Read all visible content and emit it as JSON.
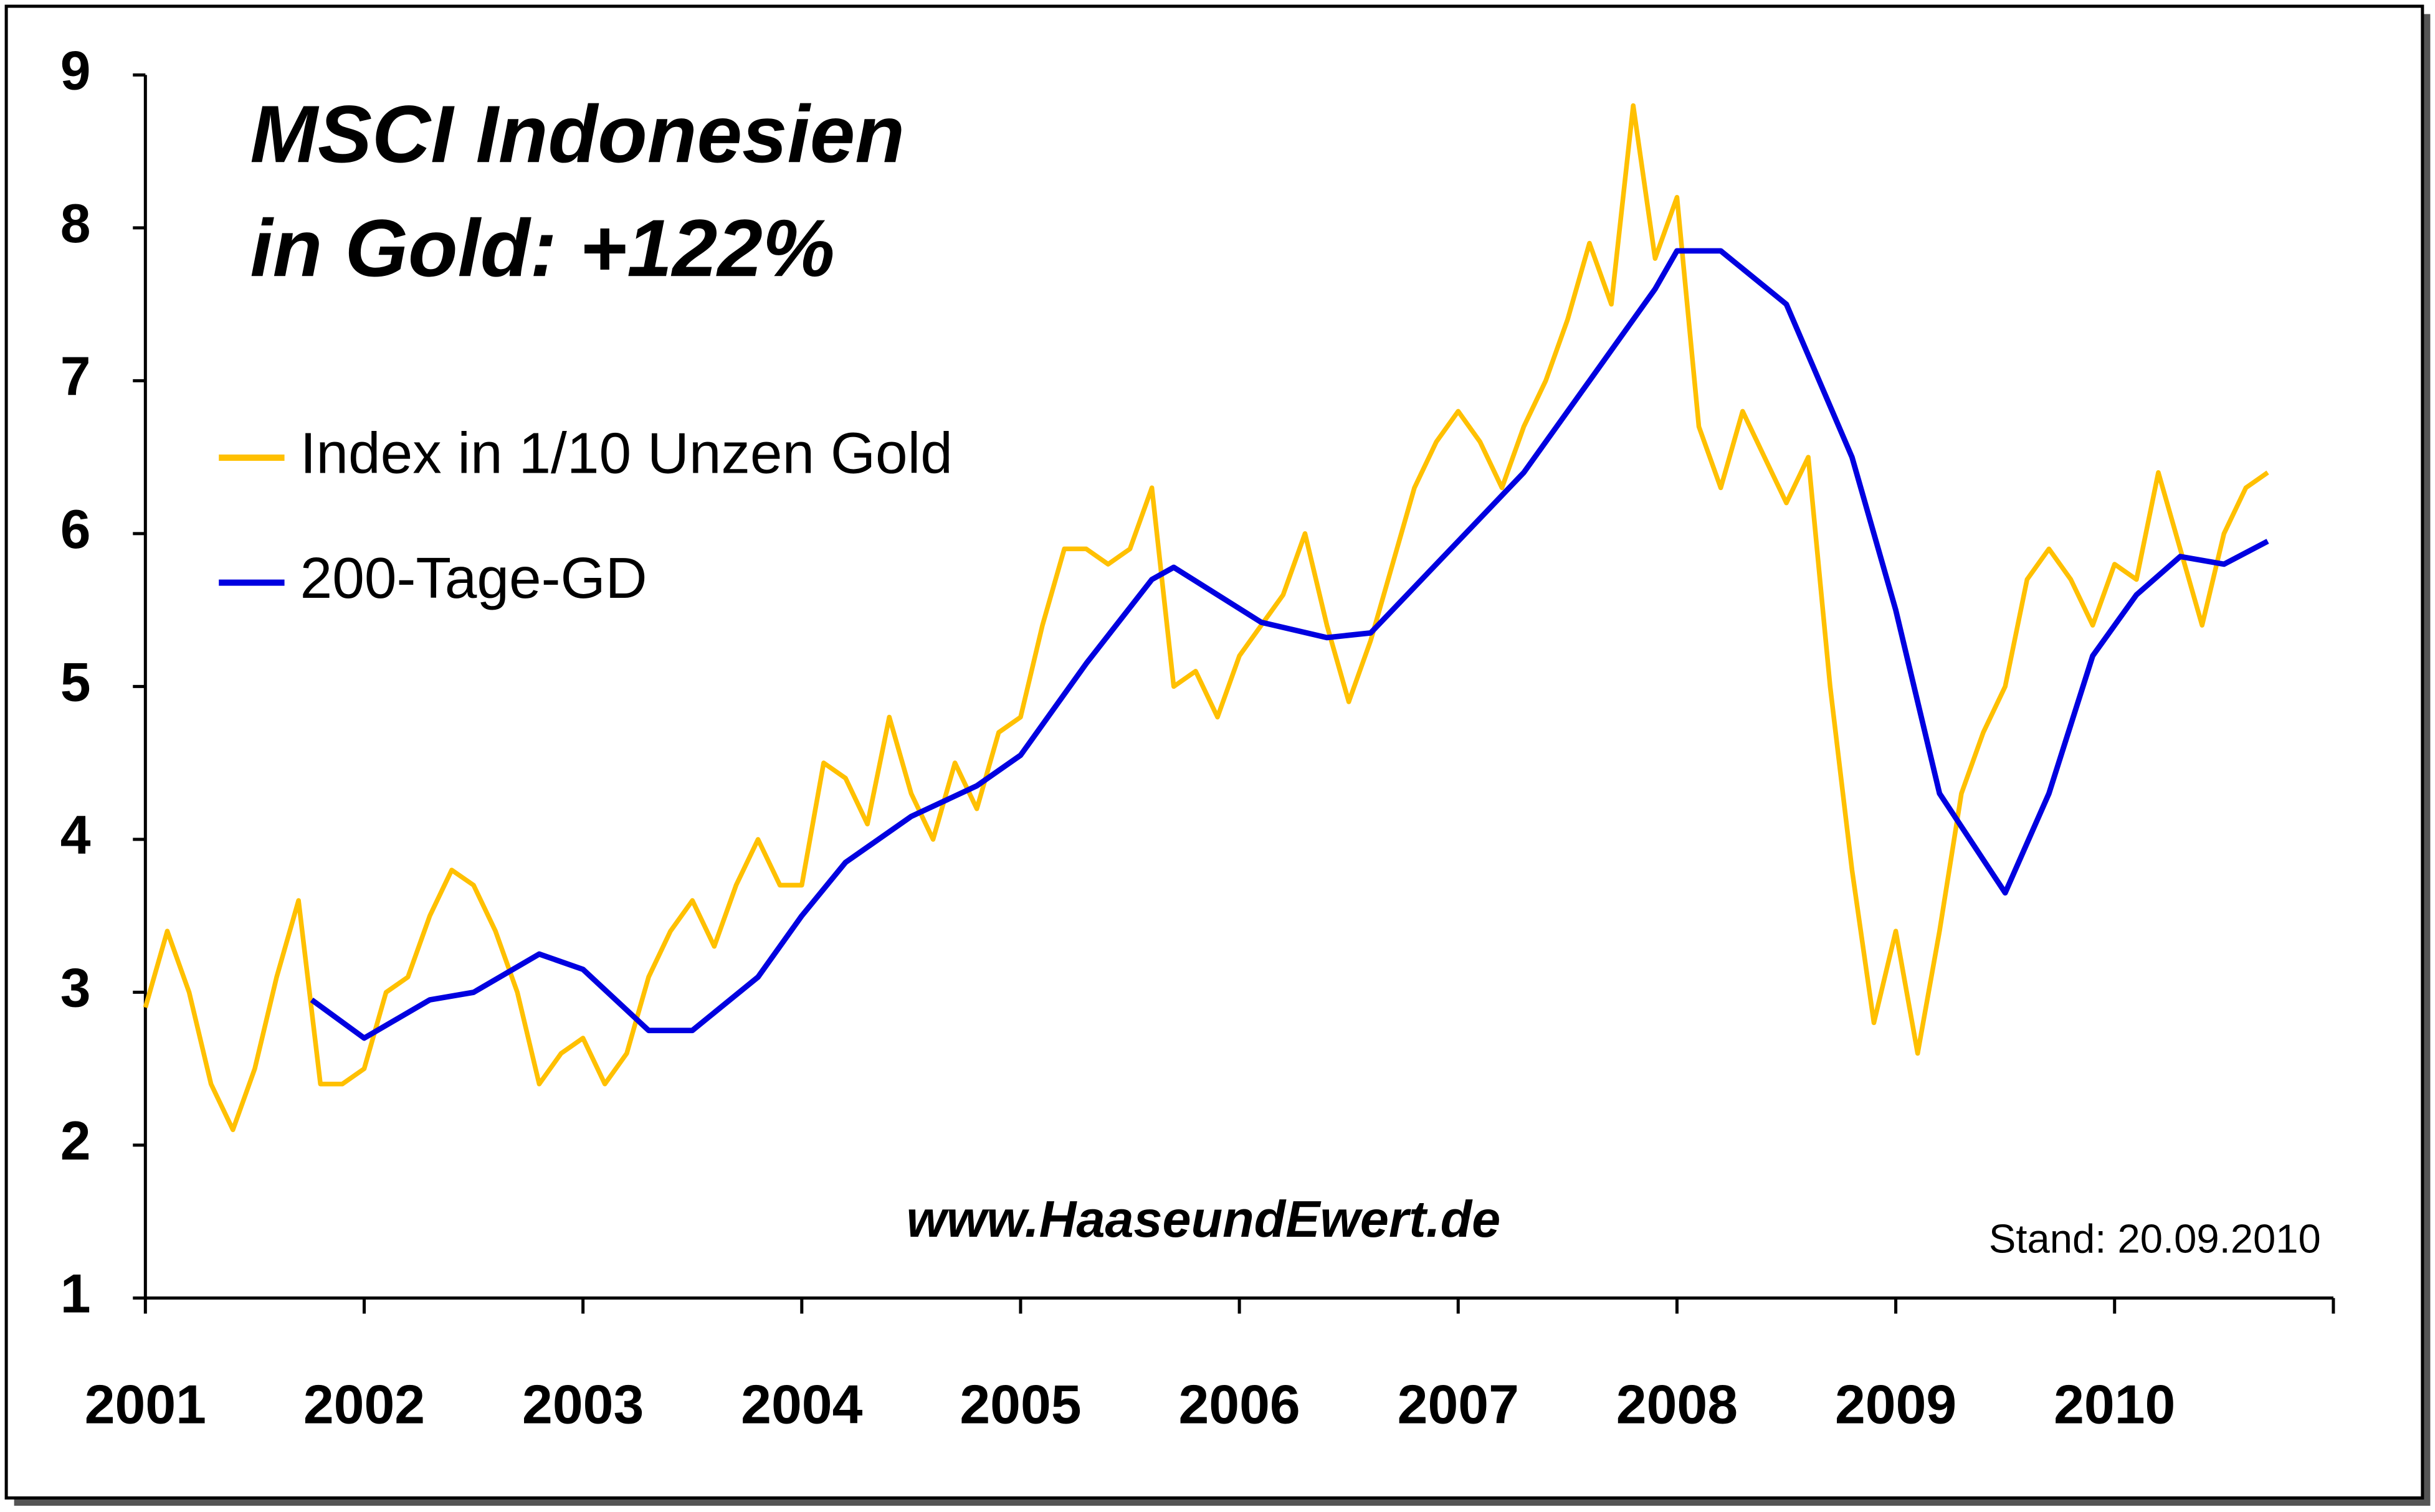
{
  "chart_data": {
    "type": "line",
    "title": [
      "MSCI Indonesien",
      "in Gold: +122%"
    ],
    "annotations": [
      "www.HaaseundEwert.de",
      "Stand: 20.09.2010"
    ],
    "xlim": [
      2001,
      2011
    ],
    "xticks": [
      2001,
      2002,
      2003,
      2004,
      2005,
      2006,
      2007,
      2008,
      2009,
      2010
    ],
    "ylim": [
      1,
      9
    ],
    "yticks": [
      1,
      2,
      3,
      4,
      5,
      6,
      7,
      8,
      9
    ],
    "grid": false,
    "series": [
      {
        "name": "Index in 1/10 Unzen Gold",
        "color": "#ffc000",
        "x": [
          2001.0,
          2001.1,
          2001.2,
          2001.3,
          2001.4,
          2001.5,
          2001.6,
          2001.7,
          2001.8,
          2001.9,
          2002.0,
          2002.1,
          2002.2,
          2002.3,
          2002.4,
          2002.5,
          2002.6,
          2002.7,
          2002.8,
          2002.9,
          2003.0,
          2003.1,
          2003.2,
          2003.3,
          2003.4,
          2003.5,
          2003.6,
          2003.7,
          2003.8,
          2003.9,
          2004.0,
          2004.1,
          2004.2,
          2004.3,
          2004.4,
          2004.5,
          2004.6,
          2004.7,
          2004.8,
          2004.9,
          2005.0,
          2005.1,
          2005.2,
          2005.3,
          2005.4,
          2005.5,
          2005.6,
          2005.7,
          2005.8,
          2005.9,
          2006.0,
          2006.1,
          2006.2,
          2006.3,
          2006.4,
          2006.5,
          2006.6,
          2006.7,
          2006.8,
          2006.9,
          2007.0,
          2007.1,
          2007.2,
          2007.3,
          2007.4,
          2007.5,
          2007.6,
          2007.7,
          2007.8,
          2007.9,
          2008.0,
          2008.1,
          2008.2,
          2008.3,
          2008.4,
          2008.5,
          2008.6,
          2008.7,
          2008.8,
          2008.9,
          2009.0,
          2009.1,
          2009.2,
          2009.3,
          2009.4,
          2009.5,
          2009.6,
          2009.7,
          2009.8,
          2009.9,
          2010.0,
          2010.1,
          2010.2,
          2010.3,
          2010.4,
          2010.5,
          2010.6,
          2010.7
        ],
        "values": [
          2.9,
          3.4,
          3.0,
          2.4,
          2.1,
          2.5,
          3.1,
          3.6,
          2.4,
          2.4,
          2.5,
          3.0,
          3.1,
          3.5,
          3.8,
          3.7,
          3.4,
          3.0,
          2.4,
          2.6,
          2.7,
          2.4,
          2.6,
          3.1,
          3.4,
          3.6,
          3.3,
          3.7,
          4.0,
          3.7,
          3.7,
          4.5,
          4.4,
          4.1,
          4.8,
          4.3,
          4.0,
          4.5,
          4.2,
          4.7,
          4.8,
          5.4,
          5.9,
          5.9,
          5.8,
          5.9,
          6.3,
          5.0,
          5.1,
          4.8,
          5.2,
          5.4,
          5.6,
          6.0,
          5.4,
          4.9,
          5.3,
          5.8,
          6.3,
          6.6,
          6.8,
          6.6,
          6.3,
          6.7,
          7.0,
          7.4,
          7.9,
          7.5,
          8.8,
          7.8,
          8.2,
          6.7,
          6.3,
          6.8,
          6.5,
          6.2,
          6.5,
          5.0,
          3.8,
          2.8,
          3.4,
          2.6,
          3.4,
          4.3,
          4.7,
          5.0,
          5.7,
          5.9,
          5.7,
          5.4,
          5.8,
          5.7,
          6.4,
          5.9,
          5.4,
          6.0,
          6.3,
          6.4
        ]
      },
      {
        "name": "200-Tage-GD",
        "color": "#0000e0",
        "x": [
          2001.76,
          2002.0,
          2002.3,
          2002.5,
          2002.8,
          2003.0,
          2003.3,
          2003.5,
          2003.8,
          2004.0,
          2004.2,
          2004.5,
          2004.8,
          2005.0,
          2005.3,
          2005.6,
          2005.7,
          2005.9,
          2006.1,
          2006.4,
          2006.6,
          2007.0,
          2007.3,
          2007.6,
          2007.9,
          2008.0,
          2008.2,
          2008.5,
          2008.8,
          2009.0,
          2009.2,
          2009.5,
          2009.7,
          2009.9,
          2010.1,
          2010.3,
          2010.5,
          2010.7
        ],
        "values": [
          2.95,
          2.7,
          2.95,
          3.0,
          3.25,
          3.15,
          2.75,
          2.75,
          3.1,
          3.5,
          3.85,
          4.15,
          4.35,
          4.55,
          5.15,
          5.7,
          5.78,
          5.6,
          5.42,
          5.32,
          5.35,
          5.95,
          6.4,
          7.0,
          7.6,
          7.85,
          7.85,
          7.5,
          6.5,
          5.5,
          4.3,
          3.65,
          4.3,
          5.2,
          5.6,
          5.85,
          5.8,
          5.95
        ]
      }
    ]
  }
}
